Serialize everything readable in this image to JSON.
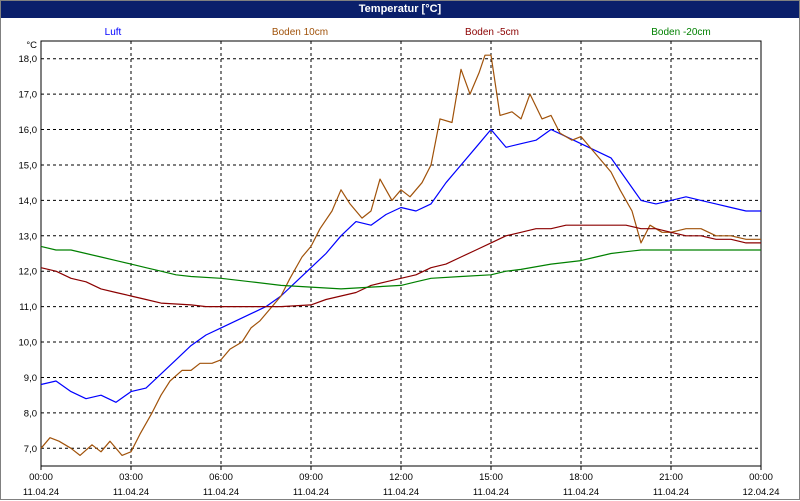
{
  "window": {
    "title": "Temperatur [°C]"
  },
  "colors": {
    "titlebar": "#0a1f6b",
    "Luft": "#0000ff",
    "Boden 10cm": "#a0520a",
    "Boden -5cm": "#8b0000",
    "Boden -20cm": "#008000",
    "grid": "#000000"
  },
  "chart_data": {
    "type": "line",
    "title": "Temperatur [°C]",
    "ylabel": "°C",
    "ylim": [
      6.5,
      18.5
    ],
    "yticks": [
      "7,0",
      "8,0",
      "9,0",
      "10,0",
      "11,0",
      "12,0",
      "13,0",
      "14,0",
      "15,0",
      "16,0",
      "17,0",
      "18,0"
    ],
    "x_hours": [
      0,
      24
    ],
    "xticks": [
      {
        "time": "00:00",
        "date": "11.04.24"
      },
      {
        "time": "03:00",
        "date": "11.04.24"
      },
      {
        "time": "06:00",
        "date": "11.04.24"
      },
      {
        "time": "09:00",
        "date": "11.04.24"
      },
      {
        "time": "12:00",
        "date": "11.04.24"
      },
      {
        "time": "15:00",
        "date": "11.04.24"
      },
      {
        "time": "18:00",
        "date": "11.04.24"
      },
      {
        "time": "21:00",
        "date": "11.04.24"
      },
      {
        "time": "00:00",
        "date": "12.04.24"
      }
    ],
    "grid": true,
    "legend_position": "top",
    "series": [
      {
        "name": "Luft",
        "color": "#0000ff",
        "points": [
          [
            0,
            8.8
          ],
          [
            0.5,
            8.9
          ],
          [
            1,
            8.6
          ],
          [
            1.5,
            8.4
          ],
          [
            2,
            8.5
          ],
          [
            2.5,
            8.3
          ],
          [
            3,
            8.6
          ],
          [
            3.5,
            8.7
          ],
          [
            4,
            9.1
          ],
          [
            4.5,
            9.5
          ],
          [
            5,
            9.9
          ],
          [
            5.5,
            10.2
          ],
          [
            6,
            10.4
          ],
          [
            6.5,
            10.6
          ],
          [
            7,
            10.8
          ],
          [
            7.5,
            11.0
          ],
          [
            8,
            11.3
          ],
          [
            8.5,
            11.7
          ],
          [
            9,
            12.1
          ],
          [
            9.5,
            12.5
          ],
          [
            10,
            13.0
          ],
          [
            10.5,
            13.4
          ],
          [
            11,
            13.3
          ],
          [
            11.5,
            13.6
          ],
          [
            12,
            13.8
          ],
          [
            12.5,
            13.7
          ],
          [
            13,
            13.9
          ],
          [
            13.5,
            14.5
          ],
          [
            14,
            15.0
          ],
          [
            14.5,
            15.5
          ],
          [
            15,
            16.0
          ],
          [
            15.5,
            15.5
          ],
          [
            16,
            15.6
          ],
          [
            16.5,
            15.7
          ],
          [
            17,
            16.0
          ],
          [
            17.5,
            15.8
          ],
          [
            18,
            15.6
          ],
          [
            18.5,
            15.4
          ],
          [
            19,
            15.2
          ],
          [
            19.5,
            14.6
          ],
          [
            20,
            14.0
          ],
          [
            20.5,
            13.9
          ],
          [
            21,
            14.0
          ],
          [
            21.5,
            14.1
          ],
          [
            22,
            14.0
          ],
          [
            22.5,
            13.9
          ],
          [
            23,
            13.8
          ],
          [
            23.5,
            13.7
          ],
          [
            24,
            13.7
          ]
        ]
      },
      {
        "name": "Boden 10cm",
        "color": "#a0520a",
        "points": [
          [
            0,
            7.0
          ],
          [
            0.3,
            7.3
          ],
          [
            0.6,
            7.2
          ],
          [
            1,
            7.0
          ],
          [
            1.3,
            6.8
          ],
          [
            1.7,
            7.1
          ],
          [
            2,
            6.9
          ],
          [
            2.3,
            7.2
          ],
          [
            2.7,
            6.8
          ],
          [
            3,
            6.9
          ],
          [
            3.3,
            7.4
          ],
          [
            3.7,
            8.0
          ],
          [
            4,
            8.5
          ],
          [
            4.3,
            8.9
          ],
          [
            4.7,
            9.2
          ],
          [
            5,
            9.2
          ],
          [
            5.3,
            9.4
          ],
          [
            5.7,
            9.4
          ],
          [
            6,
            9.5
          ],
          [
            6.3,
            9.8
          ],
          [
            6.7,
            10.0
          ],
          [
            7,
            10.4
          ],
          [
            7.3,
            10.6
          ],
          [
            7.7,
            11.0
          ],
          [
            8,
            11.3
          ],
          [
            8.3,
            11.8
          ],
          [
            8.7,
            12.4
          ],
          [
            9,
            12.7
          ],
          [
            9.3,
            13.2
          ],
          [
            9.7,
            13.7
          ],
          [
            10,
            14.3
          ],
          [
            10.3,
            13.9
          ],
          [
            10.7,
            13.5
          ],
          [
            11,
            13.7
          ],
          [
            11.3,
            14.6
          ],
          [
            11.7,
            14.0
          ],
          [
            12,
            14.3
          ],
          [
            12.3,
            14.1
          ],
          [
            12.7,
            14.5
          ],
          [
            13,
            15.0
          ],
          [
            13.3,
            16.3
          ],
          [
            13.7,
            16.2
          ],
          [
            14,
            17.7
          ],
          [
            14.3,
            17.0
          ],
          [
            14.6,
            17.6
          ],
          [
            14.8,
            18.1
          ],
          [
            15,
            18.1
          ],
          [
            15.3,
            16.4
          ],
          [
            15.7,
            16.5
          ],
          [
            16,
            16.3
          ],
          [
            16.3,
            17.0
          ],
          [
            16.7,
            16.3
          ],
          [
            17,
            16.4
          ],
          [
            17.3,
            15.9
          ],
          [
            17.7,
            15.7
          ],
          [
            18,
            15.8
          ],
          [
            18.3,
            15.5
          ],
          [
            18.7,
            15.1
          ],
          [
            19,
            14.8
          ],
          [
            19.3,
            14.3
          ],
          [
            19.7,
            13.7
          ],
          [
            20,
            12.8
          ],
          [
            20.3,
            13.3
          ],
          [
            20.7,
            13.1
          ],
          [
            21,
            13.1
          ],
          [
            21.5,
            13.2
          ],
          [
            22,
            13.2
          ],
          [
            22.5,
            13.0
          ],
          [
            23,
            13.0
          ],
          [
            23.5,
            12.9
          ],
          [
            24,
            12.9
          ]
        ]
      },
      {
        "name": "Boden -5cm",
        "color": "#8b0000",
        "points": [
          [
            0,
            12.1
          ],
          [
            0.5,
            12.0
          ],
          [
            1,
            11.8
          ],
          [
            1.5,
            11.7
          ],
          [
            2,
            11.5
          ],
          [
            2.5,
            11.4
          ],
          [
            3,
            11.3
          ],
          [
            3.5,
            11.2
          ],
          [
            4,
            11.1
          ],
          [
            5,
            11.05
          ],
          [
            5.5,
            11.0
          ],
          [
            6,
            11.0
          ],
          [
            7,
            11.0
          ],
          [
            8,
            11.0
          ],
          [
            9,
            11.05
          ],
          [
            9.5,
            11.2
          ],
          [
            10,
            11.3
          ],
          [
            10.5,
            11.4
          ],
          [
            11,
            11.6
          ],
          [
            11.5,
            11.7
          ],
          [
            12,
            11.8
          ],
          [
            12.5,
            11.9
          ],
          [
            13,
            12.1
          ],
          [
            13.5,
            12.2
          ],
          [
            14,
            12.4
          ],
          [
            14.5,
            12.6
          ],
          [
            15,
            12.8
          ],
          [
            15.5,
            13.0
          ],
          [
            16,
            13.1
          ],
          [
            16.5,
            13.2
          ],
          [
            17,
            13.2
          ],
          [
            17.5,
            13.3
          ],
          [
            18,
            13.3
          ],
          [
            18.5,
            13.3
          ],
          [
            19,
            13.3
          ],
          [
            19.5,
            13.3
          ],
          [
            20,
            13.2
          ],
          [
            20.5,
            13.2
          ],
          [
            21,
            13.1
          ],
          [
            21.5,
            13.0
          ],
          [
            22,
            13.0
          ],
          [
            22.5,
            12.9
          ],
          [
            23,
            12.9
          ],
          [
            23.5,
            12.8
          ],
          [
            24,
            12.8
          ]
        ]
      },
      {
        "name": "Boden -20cm",
        "color": "#008000",
        "points": [
          [
            0,
            12.7
          ],
          [
            0.5,
            12.6
          ],
          [
            1,
            12.6
          ],
          [
            1.5,
            12.5
          ],
          [
            2,
            12.4
          ],
          [
            2.5,
            12.3
          ],
          [
            3,
            12.2
          ],
          [
            3.5,
            12.1
          ],
          [
            4,
            12.0
          ],
          [
            4.5,
            11.9
          ],
          [
            5,
            11.85
          ],
          [
            6,
            11.8
          ],
          [
            7,
            11.7
          ],
          [
            8,
            11.6
          ],
          [
            9,
            11.55
          ],
          [
            10,
            11.5
          ],
          [
            11,
            11.55
          ],
          [
            12,
            11.6
          ],
          [
            12.5,
            11.7
          ],
          [
            13,
            11.8
          ],
          [
            14,
            11.85
          ],
          [
            15,
            11.9
          ],
          [
            15.5,
            12.0
          ],
          [
            16,
            12.05
          ],
          [
            17,
            12.2
          ],
          [
            18,
            12.3
          ],
          [
            18.5,
            12.4
          ],
          [
            19,
            12.5
          ],
          [
            19.5,
            12.55
          ],
          [
            20,
            12.6
          ],
          [
            21,
            12.6
          ],
          [
            22,
            12.6
          ],
          [
            23,
            12.6
          ],
          [
            24,
            12.6
          ]
        ]
      }
    ]
  }
}
